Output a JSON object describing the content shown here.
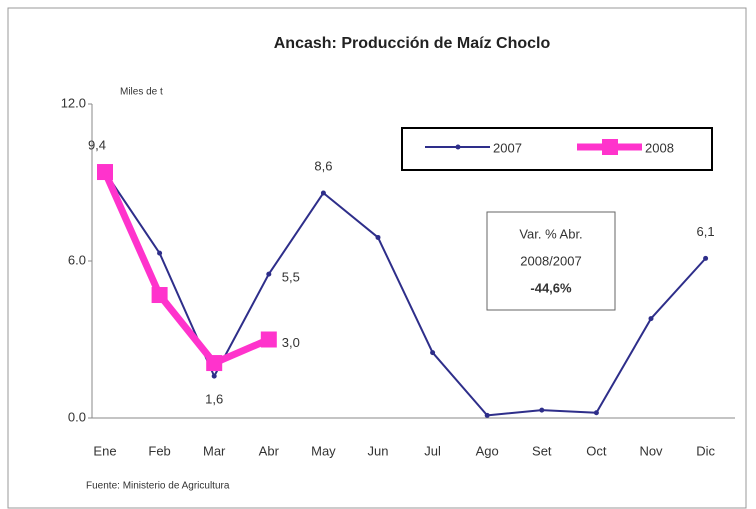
{
  "chart_data": {
    "type": "line",
    "title": "Ancash: Producción de Maíz Choclo",
    "y_label": "Miles de t",
    "source": "Fuente: Ministerio de Agricultura",
    "annotation": [
      "Var. % Abr.",
      "2008/2007",
      "-44,6%"
    ],
    "categories": [
      "Ene",
      "Feb",
      "Mar",
      "Abr",
      "May",
      "Jun",
      "Jul",
      "Ago",
      "Set",
      "Oct",
      "Nov",
      "Dic"
    ],
    "series": [
      {
        "name": "2007",
        "color": "#2e2e8a",
        "values": [
          9.4,
          6.3,
          1.6,
          5.5,
          8.6,
          6.9,
          2.5,
          0.1,
          0.3,
          0.2,
          3.8,
          6.1
        ],
        "value_labels": [
          "9,4",
          null,
          "1,6",
          "5,5",
          "8,6",
          null,
          null,
          null,
          null,
          null,
          null,
          "6,1"
        ]
      },
      {
        "name": "2008",
        "color": "#ff33cc",
        "values": [
          9.4,
          4.7,
          2.1,
          3.0,
          null,
          null,
          null,
          null,
          null,
          null,
          null,
          null
        ],
        "value_labels": [
          null,
          null,
          null,
          "3,0",
          null,
          null,
          null,
          null,
          null,
          null,
          null,
          null
        ]
      }
    ],
    "ylim": [
      0,
      12
    ],
    "yticks": [
      {
        "value": 0,
        "label": "0.0"
      },
      {
        "value": 6,
        "label": "6.0"
      },
      {
        "value": 12,
        "label": "12.0"
      }
    ],
    "grid": false,
    "legend": "top-right"
  }
}
